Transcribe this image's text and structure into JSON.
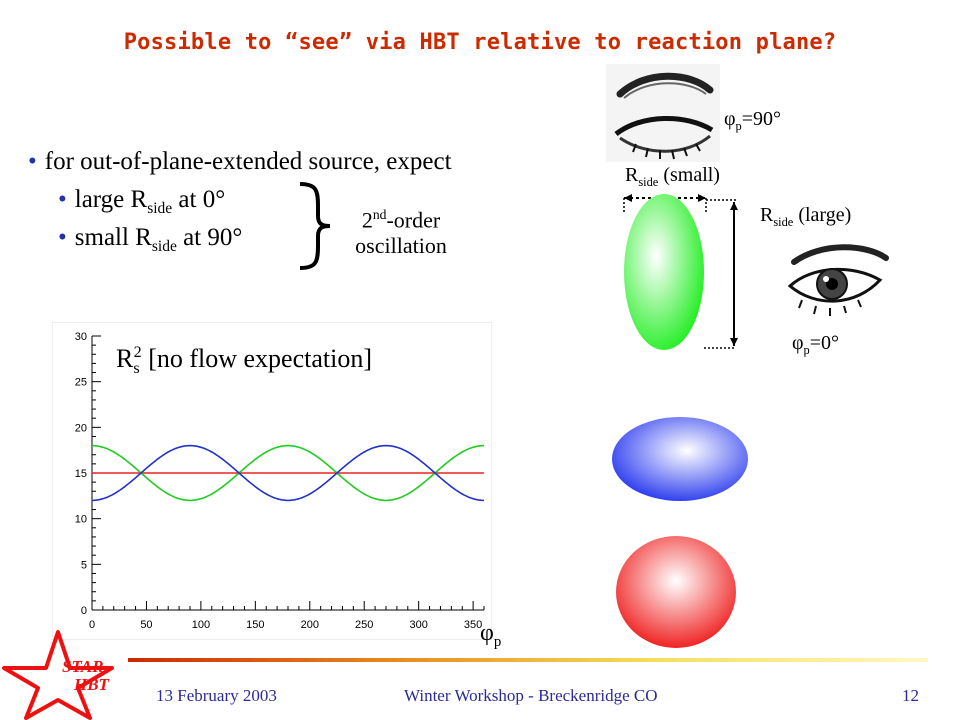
{
  "slide": {
    "title": "Possible to “see” via HBT relative to reaction plane?",
    "bullets": [
      {
        "text": "for out-of-plane-extended source, expect"
      },
      {
        "pre": "large R",
        "sub": "side",
        "post": " at 0°"
      },
      {
        "pre": "small R",
        "sub": "side",
        "post": " at 90°"
      }
    ],
    "bracket_note": {
      "pre": "2",
      "sup": "nd",
      "post": "-order",
      "line2": "oscillation"
    },
    "eye_top_label": {
      "symbol": "φ",
      "sub": "p",
      "text": "=90°"
    },
    "eye_side_label": {
      "symbol": "φ",
      "sub": "p",
      "text": "=0°"
    },
    "rside_small": {
      "pre": "R",
      "sub": "side",
      "post": " (small)"
    },
    "rside_large": {
      "pre": "R",
      "sub": "side",
      "post": " (large)"
    },
    "plot_label": {
      "pre": "R",
      "sub": "s",
      "sup": "2",
      "post": " [no flow expectation]"
    },
    "x_axis_symbol": {
      "symbol": "φ",
      "sub": "p"
    },
    "logo": {
      "line1": "STAR",
      "line2": "HBT"
    },
    "footer": {
      "date": "13 February 2003",
      "event": "Winter Workshop - Breckenridge CO",
      "page": "12"
    }
  },
  "colors": {
    "title": "#cc2a00",
    "footer": "#2a2a9a",
    "green": "#22dd22",
    "blue": "#2244ee",
    "red": "#ee2222",
    "logo": "#ee1111"
  },
  "chart_data": {
    "type": "line",
    "title": "",
    "xlabel": "",
    "ylabel": "",
    "xlim": [
      0,
      360
    ],
    "ylim": [
      0,
      30
    ],
    "xticks": [
      0,
      50,
      100,
      150,
      200,
      250,
      300,
      350
    ],
    "yticks": [
      0,
      5,
      10,
      15,
      20,
      25,
      30
    ],
    "series": [
      {
        "color": "#ee2222",
        "formula": "15",
        "x": [
          0,
          360
        ],
        "y": [
          15,
          15
        ]
      },
      {
        "color": "#22cc22",
        "formula": "15 + 3 cos(2x)",
        "x": [
          0,
          45,
          90,
          135,
          180,
          225,
          270,
          315,
          360
        ],
        "y": [
          18,
          15,
          12,
          15,
          18,
          15,
          12,
          15,
          18
        ]
      },
      {
        "color": "#2233cc",
        "formula": "15 - 3 cos(2x)",
        "x": [
          0,
          45,
          90,
          135,
          180,
          225,
          270,
          315,
          360
        ],
        "y": [
          12,
          15,
          18,
          15,
          12,
          15,
          18,
          15,
          12
        ]
      }
    ]
  }
}
